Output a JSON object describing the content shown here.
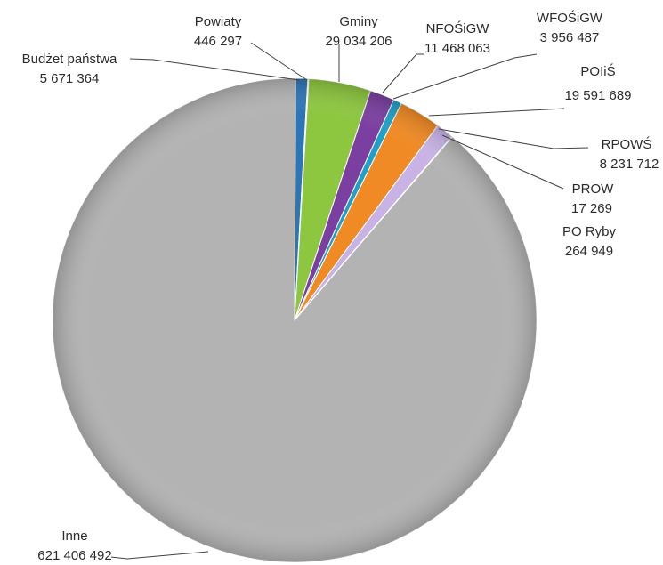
{
  "chart_data": {
    "type": "pie",
    "title": "",
    "slices": [
      {
        "name": "Budżet państwa",
        "value": 5671364,
        "value_label": "5 671 364",
        "color": "#2e75b6"
      },
      {
        "name": "Powiaty",
        "value": 446297,
        "value_label": "446 297",
        "color": "#d9d9d9"
      },
      {
        "name": "Gminy",
        "value": 29034206,
        "value_label": "29 034 206",
        "color": "#8dc63f"
      },
      {
        "name": "NFOŚiGW",
        "value": 11468063,
        "value_label": "11 468 063",
        "color": "#7a3fa0"
      },
      {
        "name": "WFOŚiGW",
        "value": 3956487,
        "value_label": "3 956 487",
        "color": "#1ea0c8"
      },
      {
        "name": "POIiŚ",
        "value": 19591689,
        "value_label": "19 591 689",
        "color": "#f08a24"
      },
      {
        "name": "RPOWŚ",
        "value": 8231712,
        "value_label": "8 231 712",
        "color": "#c9b3e6"
      },
      {
        "name": "PROW",
        "value": 17269,
        "value_label": "17 269",
        "color": "#5b9bd5"
      },
      {
        "name": "PO Ryby",
        "value": 264949,
        "value_label": "264 949",
        "color": "#9dc3e6"
      },
      {
        "name": "Inne",
        "value": 621406492,
        "value_label": "621 406 492",
        "color": "#b3b3b3"
      }
    ]
  }
}
